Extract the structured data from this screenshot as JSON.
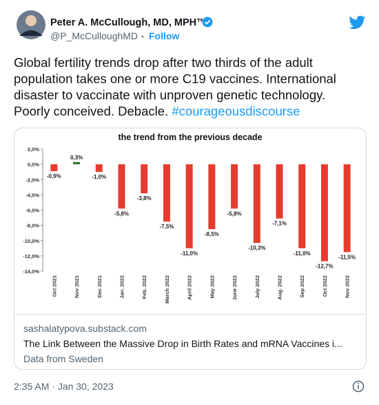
{
  "author": "Peter A. McCullough, MD, MPH™",
  "handle": "@P_McCulloughMD",
  "follow": "Follow",
  "text_lines": [
    "Global fertility trends drop after two thirds of the adult",
    "population takes one or more C19 vaccines.   International",
    "disaster to vaccinate with unproven genetic technology.",
    "Poorly conceived. Debacle. "
  ],
  "hashtag": "#courageousdiscourse",
  "card": {
    "domain": "sashalatypova.substack.com",
    "title": "The Link Between the Massive Drop in Birth Rates and mRNA Vaccines i...",
    "subtitle": "Data from Sweden"
  },
  "timestamp": "2:35 AM · Jan 30, 2023",
  "chart_data": {
    "type": "bar",
    "title": "the trend from the previous decade",
    "categories": [
      "Oct 2021",
      "Nov 2021",
      "Dec 2021",
      "Jan. 2022",
      "Feb. 2022",
      "March 2022",
      "April 2022",
      "May 2022",
      "June 2022",
      "July 2022",
      "Aug. 2022",
      "Sep 2022",
      "Oct 2022",
      "Nov 2022"
    ],
    "values": [
      -0.9,
      0.3,
      -1.0,
      -5.8,
      -3.8,
      -7.5,
      -11.0,
      -8.5,
      -5.8,
      -10.3,
      -7.1,
      -11.0,
      -12.7,
      -11.5
    ],
    "value_labels": [
      "-0,9%",
      "0,3%",
      "-1,0%",
      "-5,8%",
      "-3,8%",
      "-7,5%",
      "-11,0%",
      "-8,5%",
      "-5,8%",
      "-10,3%",
      "-7,1%",
      "-11,0%",
      "-12,7%",
      "-11,5%"
    ],
    "colors": [
      "#e63b2e",
      "#2e7d32",
      "#e63b2e",
      "#e63b2e",
      "#e63b2e",
      "#e63b2e",
      "#e63b2e",
      "#e63b2e",
      "#e63b2e",
      "#e63b2e",
      "#e63b2e",
      "#e63b2e",
      "#e63b2e",
      "#e63b2e"
    ],
    "ylim": [
      -14,
      2
    ],
    "yticks": [
      {
        "value": 2,
        "label": "2,0%"
      },
      {
        "value": 0,
        "label": "0,0%"
      },
      {
        "value": -2,
        "label": "-2,0%"
      },
      {
        "value": -4,
        "label": "-4,0%"
      },
      {
        "value": -6,
        "label": "-6,0%"
      },
      {
        "value": -8,
        "label": "-8,0%"
      },
      {
        "value": -10,
        "label": "-10,0%"
      },
      {
        "value": -12,
        "label": "-12,0%"
      },
      {
        "value": -14,
        "label": "-14,0%"
      }
    ],
    "grid": false
  }
}
